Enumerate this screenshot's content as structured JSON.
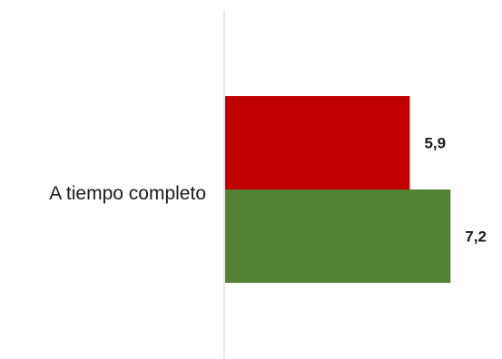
{
  "chart_data": {
    "type": "bar",
    "orientation": "horizontal",
    "categories": [
      "A tiempo completo"
    ],
    "series": [
      {
        "values": [
          5.9
        ],
        "labels": [
          "5,9"
        ],
        "color": "#c00000"
      },
      {
        "values": [
          7.2
        ],
        "labels": [
          "7,2"
        ],
        "color": "#548235"
      }
    ],
    "xlim": [
      0,
      8.7
    ],
    "grid": false,
    "legend": "none",
    "axis_color": "#d9d9d9"
  }
}
